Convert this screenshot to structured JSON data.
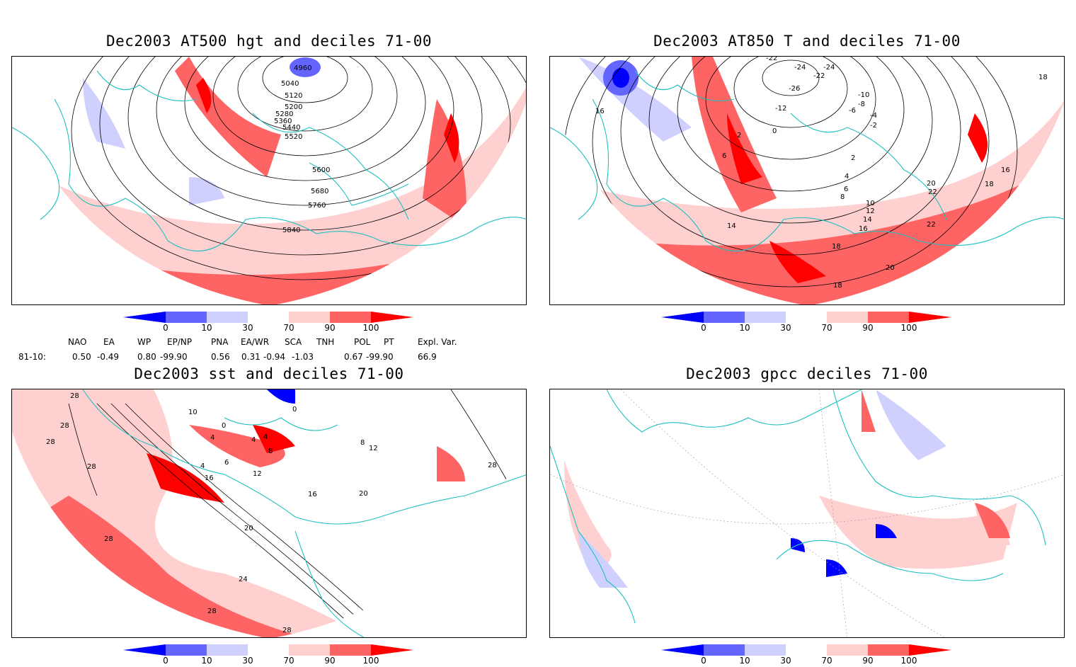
{
  "panels": [
    {
      "id": "p1",
      "title": "Dec2003 AT500 hgt and deciles 71-00",
      "contours": [
        "4960",
        "5040",
        "5120",
        "5200",
        "5280",
        "5360",
        "5440",
        "5520",
        "5600",
        "5680",
        "5760",
        "5840"
      ]
    },
    {
      "id": "p2",
      "title": "Dec2003 AT850 T and deciles 71-00",
      "contours": [
        "-22",
        "-24",
        "-24",
        "-22",
        "-26",
        "-12",
        "-10",
        "-8",
        "-6",
        "-4",
        "-2",
        "0",
        "2",
        "6",
        "4",
        "2",
        "6",
        "8",
        "10",
        "12",
        "14",
        "16",
        "18",
        "20",
        "22",
        "22",
        "20",
        "18",
        "16",
        "14",
        "18",
        "16",
        "18"
      ]
    },
    {
      "id": "p3",
      "title": "Dec2003 sst and deciles 71-00",
      "contours": [
        "28",
        "28",
        "28",
        "28",
        "10",
        "0",
        "4",
        "4",
        "4",
        "8",
        "4",
        "6",
        "16",
        "12",
        "8",
        "12",
        "16",
        "20",
        "20",
        "24",
        "28",
        "28",
        "28",
        "28",
        "0"
      ]
    },
    {
      "id": "p4",
      "title": "Dec2003 gpcc deciles 71-00",
      "contours": []
    }
  ],
  "colorbar": {
    "labels": [
      "0",
      "10",
      "30",
      "70",
      "90",
      "100"
    ],
    "colors": {
      "dark_blue": "#0000ff",
      "mid_blue": "#6464ff",
      "light_blue": "#d0d0ff",
      "white": "#ffffff",
      "light_red": "#ffd0d0",
      "mid_red": "#ff6464",
      "dark_red": "#ff0000"
    }
  },
  "indices": {
    "headers": [
      "NAO",
      "EA",
      "WP",
      "EP/NP",
      "PNA",
      "EA/WR",
      "SCA",
      "TNH",
      "POL",
      "PT",
      "Expl. Var."
    ],
    "row_label": "81-10:",
    "values": [
      "0.50",
      "-0.49",
      "0.80",
      "-99.90",
      "0.56",
      "0.31",
      "-0.94",
      "-1.03",
      "0.67",
      "-99.90",
      "66.9"
    ]
  },
  "style": {
    "coast_color": "#20c0c0",
    "contour_color": "#000000"
  }
}
